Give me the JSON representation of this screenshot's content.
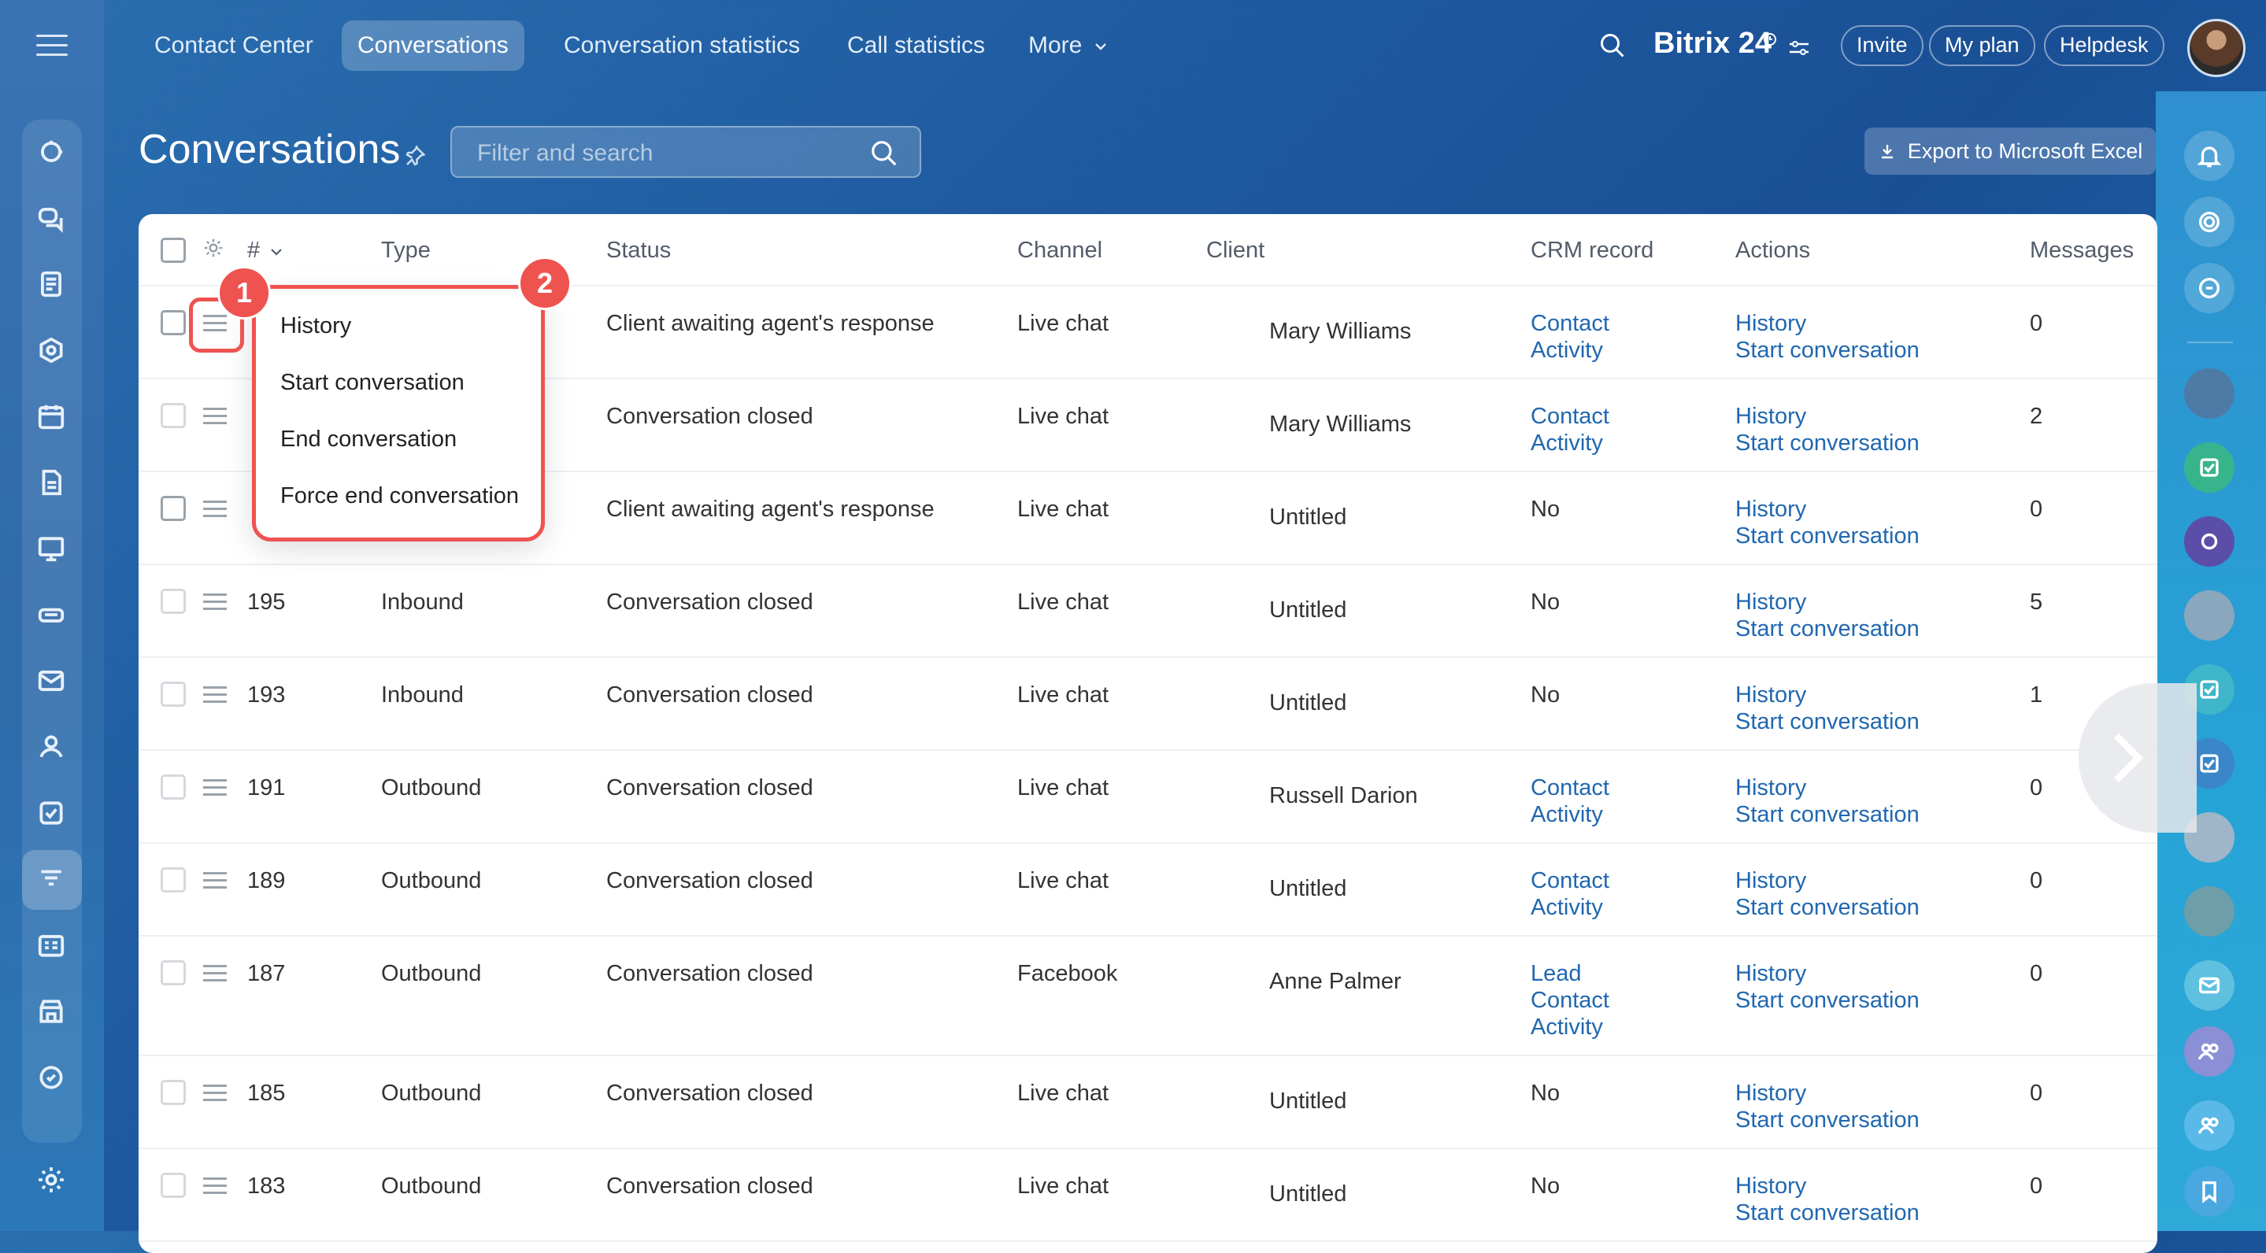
{
  "topnav": {
    "items": [
      "Contact Center",
      "Conversations",
      "Conversation statistics",
      "Call statistics",
      "More"
    ],
    "active_index": 1,
    "brand": "Bitrix 24",
    "invite": "Invite",
    "my_plan": "My plan",
    "helpdesk": "Helpdesk"
  },
  "page": {
    "title": "Conversations",
    "search_placeholder": "Filter and search",
    "export_label": "Export to Microsoft Excel"
  },
  "table": {
    "headers": {
      "num": "#",
      "type": "Type",
      "status": "Status",
      "channel": "Channel",
      "client": "Client",
      "crm": "CRM record",
      "actions": "Actions",
      "messages": "Messages"
    },
    "rows": [
      {
        "num": "",
        "type": "",
        "status": "Client awaiting agent's response",
        "channel": "Live chat",
        "client": "Mary Williams",
        "crm": [
          "Contact",
          "Activity"
        ],
        "actions": [
          "History",
          "Start conversation"
        ],
        "messages": "0"
      },
      {
        "num": "",
        "type": "",
        "status": "Conversation closed",
        "channel": "Live chat",
        "client": "Mary Williams",
        "crm": [
          "Contact",
          "Activity"
        ],
        "actions": [
          "History",
          "Start conversation"
        ],
        "messages": "2"
      },
      {
        "num": "",
        "type": "",
        "status": "Client awaiting agent's response",
        "channel": "Live chat",
        "client": "Untitled",
        "crm_text": "No",
        "actions": [
          "History",
          "Start conversation"
        ],
        "messages": "0"
      },
      {
        "num": "195",
        "type": "Inbound",
        "status": "Conversation closed",
        "channel": "Live chat",
        "client": "Untitled",
        "crm_text": "No",
        "actions": [
          "History",
          "Start conversation"
        ],
        "messages": "5"
      },
      {
        "num": "193",
        "type": "Inbound",
        "status": "Conversation closed",
        "channel": "Live chat",
        "client": "Untitled",
        "crm_text": "No",
        "actions": [
          "History",
          "Start conversation"
        ],
        "messages": "1"
      },
      {
        "num": "191",
        "type": "Outbound",
        "status": "Conversation closed",
        "channel": "Live chat",
        "client": "Russell Darion",
        "crm": [
          "Contact",
          "Activity"
        ],
        "actions": [
          "History",
          "Start conversation"
        ],
        "messages": "0"
      },
      {
        "num": "189",
        "type": "Outbound",
        "status": "Conversation closed",
        "channel": "Live chat",
        "client": "Untitled",
        "crm": [
          "Contact",
          "Activity"
        ],
        "actions": [
          "History",
          "Start conversation"
        ],
        "messages": "0"
      },
      {
        "num": "187",
        "type": "Outbound",
        "status": "Conversation closed",
        "channel": "Facebook",
        "client": "Anne Palmer",
        "crm": [
          "Lead",
          "Contact",
          "Activity"
        ],
        "actions": [
          "History",
          "Start conversation"
        ],
        "messages": "0"
      },
      {
        "num": "185",
        "type": "Outbound",
        "status": "Conversation closed",
        "channel": "Live chat",
        "client": "Untitled",
        "crm_text": "No",
        "actions": [
          "History",
          "Start conversation"
        ],
        "messages": "0"
      },
      {
        "num": "183",
        "type": "Outbound",
        "status": "Conversation closed",
        "channel": "Live chat",
        "client": "Untitled",
        "crm_text": "No",
        "actions": [
          "History",
          "Start conversation"
        ],
        "messages": "0"
      }
    ]
  },
  "popup": {
    "items": [
      "History",
      "Start conversation",
      "End conversation",
      "Force end conversation"
    ]
  },
  "badges": {
    "one": "1",
    "two": "2"
  },
  "colors": {
    "accent": "#2067b0",
    "highlight": "#ef5350"
  }
}
